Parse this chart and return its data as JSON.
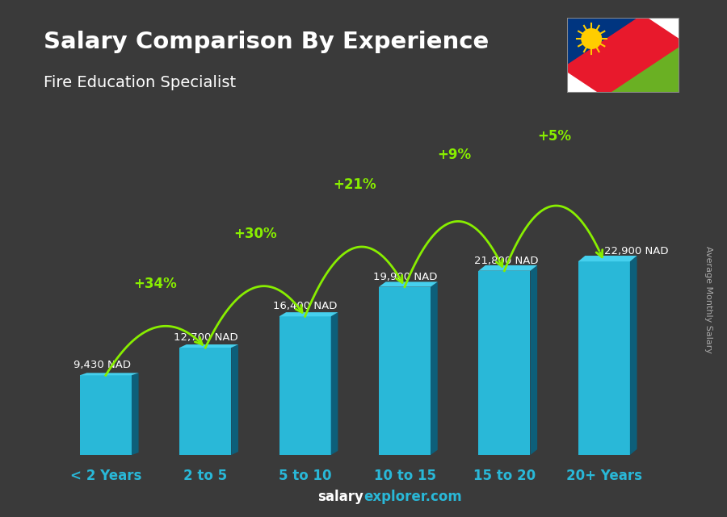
{
  "title": "Salary Comparison By Experience",
  "subtitle": "Fire Education Specialist",
  "categories": [
    "< 2 Years",
    "2 to 5",
    "5 to 10",
    "10 to 15",
    "15 to 20",
    "20+ Years"
  ],
  "values": [
    9430,
    12700,
    16400,
    19900,
    21800,
    22900
  ],
  "value_labels": [
    "9,430 NAD",
    "12,700 NAD",
    "16,400 NAD",
    "19,900 NAD",
    "21,800 NAD",
    "22,900 NAD"
  ],
  "pct_changes": [
    "+34%",
    "+30%",
    "+21%",
    "+9%",
    "+5%"
  ],
  "bar_color_main": "#29b8d8",
  "bar_color_left": "#1a8aaa",
  "bar_color_right": "#0d5f7a",
  "bar_color_top": "#45d0ee",
  "bg_color": "#3a3a3a",
  "title_color": "#ffffff",
  "subtitle_color": "#ffffff",
  "value_label_color": "#ffffff",
  "pct_color": "#88ee00",
  "xlabel_color": "#29b8d8",
  "footer_salary_color": "#ffffff",
  "footer_explorer_color": "#29b8d8",
  "ylabel_text": "Average Monthly Salary",
  "ylabel_color": "#aaaaaa",
  "overlay_alpha": 0.55
}
